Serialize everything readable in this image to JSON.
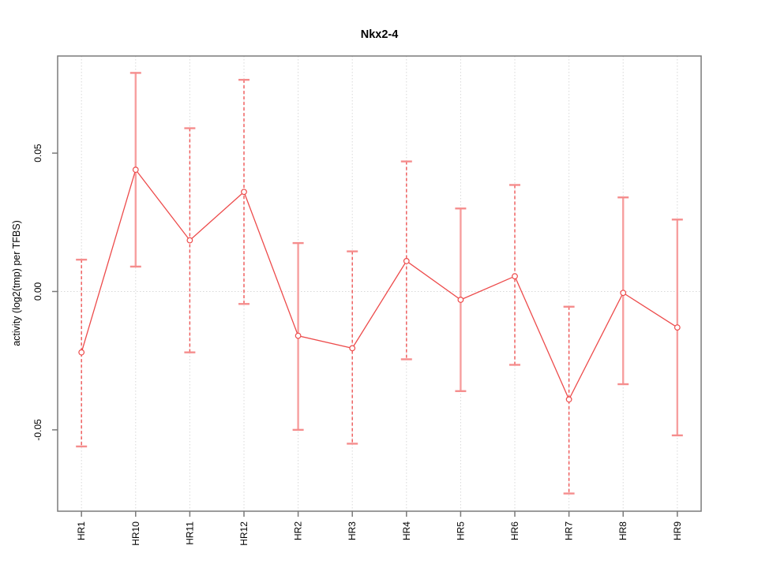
{
  "title": "Nkx2-4",
  "chart_data": {
    "type": "line",
    "title": "Nkx2-4",
    "xlabel": "",
    "ylabel": "activity (log2(tmp) per TFBS)",
    "categories": [
      "HR1",
      "HR10",
      "HR11",
      "HR12",
      "HR2",
      "HR3",
      "HR4",
      "HR5",
      "HR6",
      "HR7",
      "HR8",
      "HR9"
    ],
    "series": [
      {
        "name": "activity",
        "values": [
          -0.022,
          0.044,
          0.0185,
          0.036,
          -0.016,
          -0.0205,
          0.011,
          -0.003,
          0.0055,
          -0.039,
          -0.0005,
          -0.013
        ],
        "upper": [
          0.0115,
          0.079,
          0.059,
          0.0765,
          0.0175,
          0.0145,
          0.047,
          0.03,
          0.0385,
          -0.0055,
          0.034,
          0.026
        ],
        "lower": [
          -0.056,
          0.009,
          -0.022,
          -0.0045,
          -0.05,
          -0.055,
          -0.0245,
          -0.036,
          -0.0265,
          -0.073,
          -0.0335,
          -0.052
        ],
        "bar_styles": [
          "dashed",
          "solid",
          "dashed",
          "dashed",
          "solid",
          "dashed",
          "dashed",
          "solid",
          "dashed",
          "dashed",
          "solid",
          "solid"
        ]
      }
    ],
    "ylim": [
      -0.0794,
      0.0851
    ],
    "yticks": [
      -0.05,
      0,
      0.05
    ],
    "ytick_labels": [
      "-0.05",
      "0.00",
      "0.05"
    ],
    "legend": "none",
    "grid": {
      "vertical_dotted_per_category": true,
      "horizontal_zero_line_dotted": true
    },
    "point_marker": "open-circle",
    "colors": {
      "series_line": "#ed4b4b",
      "error_bar_solid": "#f79f9f",
      "error_bar_dashed": "#ee5555",
      "error_bar_cap": "#f58d8d",
      "grid": "#d8d8d8",
      "box_axis": "#7a7a7a",
      "text": "#000000",
      "marker_fill": "#ffffff"
    }
  }
}
